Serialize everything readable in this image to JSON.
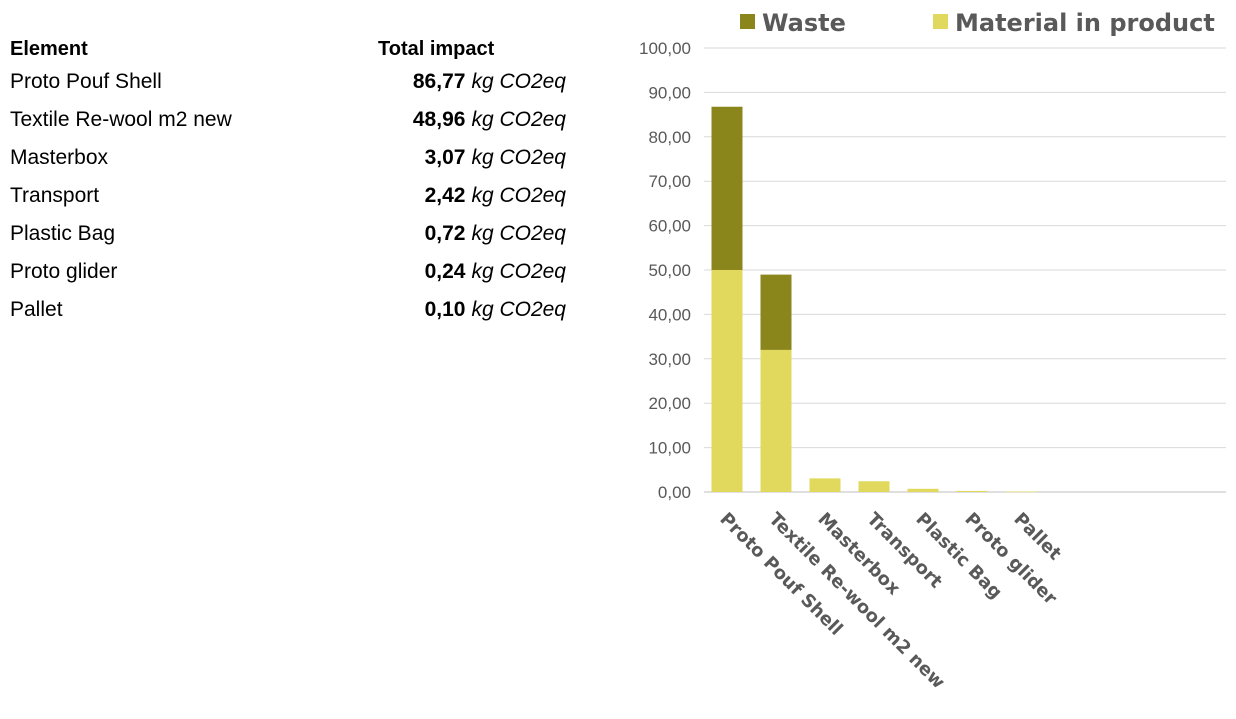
{
  "table": {
    "header_element": "Element",
    "header_impact": "Total impact",
    "unit": "kg CO2eq",
    "rows": [
      {
        "name": "Proto Pouf Shell",
        "value": "86,77"
      },
      {
        "name": "Textile Re-wool m2 new",
        "value": "48,96"
      },
      {
        "name": "Masterbox",
        "value": "3,07"
      },
      {
        "name": "Transport",
        "value": "2,42"
      },
      {
        "name": "Plastic Bag",
        "value": "0,72"
      },
      {
        "name": "Proto glider",
        "value": "0,24"
      },
      {
        "name": "Pallet",
        "value": "0,10"
      }
    ]
  },
  "chart_data": {
    "type": "bar",
    "stacked": true,
    "categories": [
      "Proto Pouf Shell",
      "Textile Re-wool m2 new",
      "Masterbox",
      "Transport",
      "Plastic Bag",
      "Proto glider",
      "Pallet"
    ],
    "series": [
      {
        "name": "Material in product",
        "color": "#e0d95e",
        "values": [
          50.0,
          32.0,
          3.07,
          2.42,
          0.72,
          0.24,
          0.1
        ]
      },
      {
        "name": "Waste",
        "color": "#8a861c",
        "values": [
          36.77,
          16.96,
          0,
          0,
          0,
          0,
          0
        ]
      }
    ],
    "legend_order": [
      "Waste",
      "Material in product"
    ],
    "legend_position": "top",
    "ylim": [
      0,
      100
    ],
    "yticks": [
      "0,00",
      "10,00",
      "20,00",
      "30,00",
      "40,00",
      "50,00",
      "60,00",
      "70,00",
      "80,00",
      "90,00",
      "100,00"
    ],
    "grid": true,
    "title": "",
    "xlabel": "",
    "ylabel": ""
  }
}
